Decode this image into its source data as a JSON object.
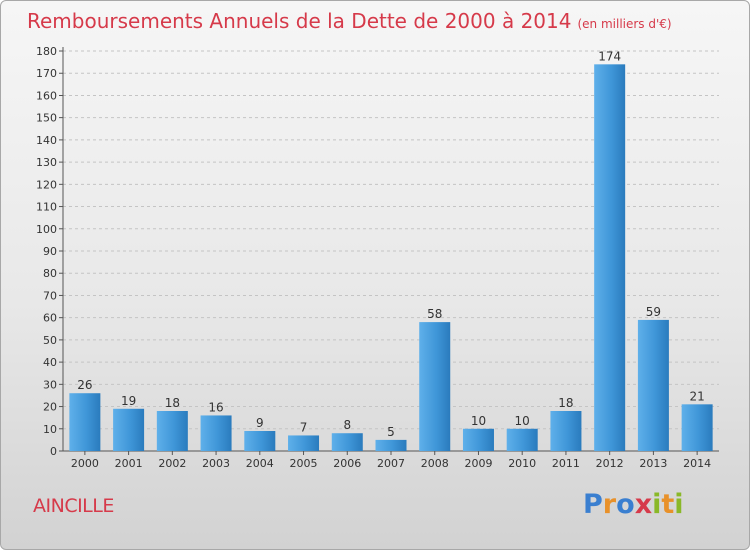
{
  "title": "Remboursements Annuels de la Dette de 2000 à 2014",
  "subtitle": "(en milliers d'€)",
  "town": "AINCILLE",
  "logo": {
    "letters": [
      "P",
      "r",
      "o",
      "x",
      "i",
      "t",
      "i"
    ],
    "colors": [
      "#3a7fd0",
      "#e8912a",
      "#3a7fd0",
      "#d63a4a",
      "#8ab828",
      "#e8912a",
      "#8ab828"
    ]
  },
  "colors": {
    "bar": "#3f96d8",
    "bar_light": "#5fb0ea",
    "bar_dark": "#2a7bbd",
    "title": "#d63a4a"
  },
  "chart_data": {
    "type": "bar",
    "categories": [
      "2000",
      "2001",
      "2002",
      "2003",
      "2004",
      "2005",
      "2006",
      "2007",
      "2008",
      "2009",
      "2010",
      "2011",
      "2012",
      "2013",
      "2014"
    ],
    "values": [
      26,
      19,
      18,
      16,
      9,
      7,
      8,
      5,
      58,
      10,
      10,
      18,
      174,
      59,
      21
    ],
    "ylim": [
      0,
      180
    ],
    "yticks": [
      0,
      10,
      20,
      30,
      40,
      50,
      60,
      70,
      80,
      90,
      100,
      110,
      120,
      130,
      140,
      150,
      160,
      170,
      180
    ],
    "grid": true,
    "legend": "none"
  }
}
